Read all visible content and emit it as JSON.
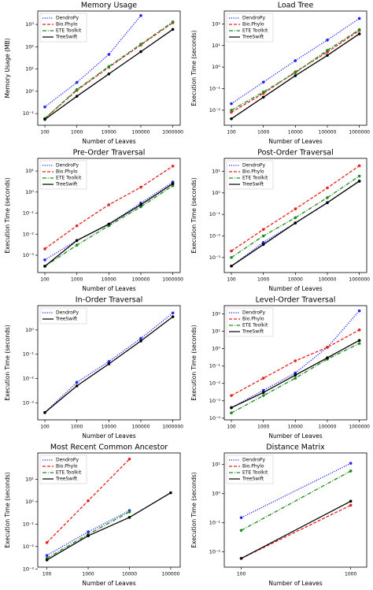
{
  "chart_data": [
    {
      "type": "line",
      "title": "Memory Usage",
      "xlabel": "Number of Leaves",
      "ylabel": "Memory Usage (MB)",
      "log_x": true,
      "log_y": true,
      "legend": "upper left",
      "x": [
        100,
        1000,
        10000,
        100000,
        1000000
      ],
      "xlim": [
        60,
        1700000
      ],
      "xticks": [
        100,
        1000,
        10000,
        100000,
        1000000
      ],
      "ylim": [
        0.03,
        4000
      ],
      "yticks": [
        {
          "value": 0.1,
          "label": "10⁻¹"
        },
        {
          "value": 1,
          "label": "10⁰"
        },
        {
          "value": 10,
          "label": "10¹"
        },
        {
          "value": 100,
          "label": "10²"
        },
        {
          "value": 1000,
          "label": "10³"
        }
      ],
      "series": [
        {
          "name": "DendroPy",
          "color": "#1f1fff",
          "linestyle": "dotted",
          "values": [
            0.2,
            2.5,
            45,
            2500,
            null
          ]
        },
        {
          "name": "Bio.Phylo",
          "color": "#e8231f",
          "linestyle": "dashed",
          "values": [
            0.06,
            1.1,
            12,
            120,
            1200
          ]
        },
        {
          "name": "ETE Toolkit",
          "color": "#1c8a1c",
          "linestyle": "dashdot",
          "values": [
            0.06,
            1.2,
            13,
            130,
            1300
          ]
        },
        {
          "name": "TreeSwift",
          "color": "#000000",
          "linestyle": "solid",
          "values": [
            0.055,
            0.6,
            6,
            60,
            600
          ]
        }
      ]
    },
    {
      "type": "line",
      "title": "Load Tree",
      "xlabel": "Number of Leaves",
      "ylabel": "Execution Time (seconds)",
      "log_x": true,
      "log_y": true,
      "legend": "upper left",
      "x": [
        100,
        1000,
        10000,
        100000,
        1000000
      ],
      "xlim": [
        60,
        1700000
      ],
      "xticks": [
        100,
        1000,
        10000,
        100000,
        1000000
      ],
      "ylim": [
        0.002,
        400
      ],
      "yticks": [
        {
          "value": 0.01,
          "label": "10⁻²"
        },
        {
          "value": 0.1,
          "label": "10⁻¹"
        },
        {
          "value": 1,
          "label": "10⁰"
        },
        {
          "value": 10,
          "label": "10¹"
        },
        {
          "value": 100,
          "label": "10²"
        }
      ],
      "series": [
        {
          "name": "DendroPy",
          "color": "#1f1fff",
          "linestyle": "dotted",
          "values": [
            0.02,
            0.2,
            2,
            18,
            180
          ]
        },
        {
          "name": "Bio.Phylo",
          "color": "#e8231f",
          "linestyle": "dashed",
          "values": [
            0.008,
            0.06,
            0.6,
            5,
            50
          ]
        },
        {
          "name": "ETE Toolkit",
          "color": "#1c8a1c",
          "linestyle": "dashdot",
          "values": [
            0.01,
            0.07,
            0.55,
            6,
            55
          ]
        },
        {
          "name": "TreeSwift",
          "color": "#000000",
          "linestyle": "solid",
          "values": [
            0.004,
            0.04,
            0.4,
            3.5,
            35
          ]
        }
      ]
    },
    {
      "type": "line",
      "title": "Pre-Order Traversal",
      "xlabel": "Number of Leaves",
      "ylabel": "Execution Time (seconds)",
      "log_x": true,
      "log_y": true,
      "legend": "upper left",
      "x": [
        100,
        1000,
        10000,
        100000,
        1000000
      ],
      "xlim": [
        60,
        1700000
      ],
      "xticks": [
        100,
        1000,
        10000,
        100000,
        1000000
      ],
      "ylim": [
        0.00015,
        40
      ],
      "yticks": [
        {
          "value": 0.001,
          "label": "10⁻³"
        },
        {
          "value": 0.01,
          "label": "10⁻²"
        },
        {
          "value": 0.1,
          "label": "10⁻¹"
        },
        {
          "value": 1,
          "label": "10⁰"
        },
        {
          "value": 10,
          "label": "10¹"
        }
      ],
      "series": [
        {
          "name": "DendroPy",
          "color": "#1f1fff",
          "linestyle": "dotted",
          "values": [
            0.0006,
            0.005,
            0.03,
            0.3,
            3
          ]
        },
        {
          "name": "Bio.Phylo",
          "color": "#e8231f",
          "linestyle": "dashed",
          "values": [
            0.002,
            0.025,
            0.25,
            1.7,
            17
          ]
        },
        {
          "name": "ETE Toolkit",
          "color": "#1c8a1c",
          "linestyle": "dashdot",
          "values": [
            0.0003,
            0.003,
            0.025,
            0.2,
            2
          ]
        },
        {
          "name": "TreeSwift",
          "color": "#000000",
          "linestyle": "solid",
          "values": [
            0.0003,
            0.005,
            0.03,
            0.25,
            2.5
          ]
        }
      ]
    },
    {
      "type": "line",
      "title": "Post-Order Traversal",
      "xlabel": "Number of Leaves",
      "ylabel": "Execution Time (seconds)",
      "log_x": true,
      "log_y": true,
      "legend": "upper left",
      "x": [
        100,
        1000,
        10000,
        100000,
        1000000
      ],
      "xlim": [
        60,
        1700000
      ],
      "xticks": [
        100,
        1000,
        10000,
        100000,
        1000000
      ],
      "ylim": [
        0.0002,
        40
      ],
      "yticks": [
        {
          "value": 0.001,
          "label": "10⁻³"
        },
        {
          "value": 0.01,
          "label": "10⁻²"
        },
        {
          "value": 0.1,
          "label": "10⁻¹"
        },
        {
          "value": 1,
          "label": "10⁰"
        },
        {
          "value": 10,
          "label": "10¹"
        }
      ],
      "series": [
        {
          "name": "DendroPy",
          "color": "#1f1fff",
          "linestyle": "dotted",
          "values": [
            0.0004,
            0.005,
            0.04,
            0.35,
            3.5
          ]
        },
        {
          "name": "Bio.Phylo",
          "color": "#e8231f",
          "linestyle": "dashed",
          "values": [
            0.002,
            0.02,
            0.18,
            1.7,
            18
          ]
        },
        {
          "name": "ETE Toolkit",
          "color": "#1c8a1c",
          "linestyle": "dashdot",
          "values": [
            0.001,
            0.01,
            0.07,
            0.6,
            6
          ]
        },
        {
          "name": "TreeSwift",
          "color": "#000000",
          "linestyle": "solid",
          "values": [
            0.0004,
            0.004,
            0.04,
            0.35,
            3.5
          ]
        }
      ]
    },
    {
      "type": "line",
      "title": "In-Order Traversal",
      "xlabel": "Number of Leaves",
      "ylabel": "Execution Time (seconds)",
      "log_x": true,
      "log_y": true,
      "legend": "upper left",
      "x": [
        100,
        1000,
        10000,
        100000,
        1000000
      ],
      "xlim": [
        60,
        1700000
      ],
      "xticks": [
        100,
        1000,
        10000,
        100000,
        1000000
      ],
      "ylim": [
        0.0002,
        10
      ],
      "yticks": [
        {
          "value": 0.001,
          "label": "10⁻³"
        },
        {
          "value": 0.01,
          "label": "10⁻²"
        },
        {
          "value": 0.1,
          "label": "10⁻¹"
        },
        {
          "value": 1,
          "label": "10⁰"
        }
      ],
      "series": [
        {
          "name": "DendroPy",
          "color": "#1f1fff",
          "linestyle": "dotted",
          "values": [
            0.0004,
            0.007,
            0.05,
            0.45,
            5
          ]
        },
        {
          "name": "TreeSwift",
          "color": "#000000",
          "linestyle": "solid",
          "values": [
            0.0004,
            0.005,
            0.04,
            0.35,
            3.5
          ]
        }
      ]
    },
    {
      "type": "line",
      "title": "Level-Order Traversal",
      "xlabel": "Number of Leaves",
      "ylabel": "Execution Time (seconds)",
      "log_x": true,
      "log_y": true,
      "legend": "upper left",
      "x": [
        100,
        1000,
        10000,
        100000,
        1000000
      ],
      "xlim": [
        60,
        1700000
      ],
      "xticks": [
        100,
        1000,
        10000,
        100000,
        1000000
      ],
      "ylim": [
        8e-05,
        300
      ],
      "yticks": [
        {
          "value": 0.0001,
          "label": "10⁻⁴"
        },
        {
          "value": 0.001,
          "label": "10⁻³"
        },
        {
          "value": 0.01,
          "label": "10⁻²"
        },
        {
          "value": 0.1,
          "label": "10⁻¹"
        },
        {
          "value": 1,
          "label": "10⁰"
        },
        {
          "value": 10,
          "label": "10¹"
        },
        {
          "value": 100,
          "label": "10²"
        }
      ],
      "series": [
        {
          "name": "DendroPy",
          "color": "#1f1fff",
          "linestyle": "dotted",
          "values": [
            0.0004,
            0.004,
            0.04,
            1.2,
            150
          ]
        },
        {
          "name": "Bio.Phylo",
          "color": "#e8231f",
          "linestyle": "dashed",
          "values": [
            0.002,
            0.02,
            0.2,
            1.2,
            12
          ]
        },
        {
          "name": "ETE Toolkit",
          "color": "#1c8a1c",
          "linestyle": "dashdot",
          "values": [
            0.0002,
            0.002,
            0.02,
            0.25,
            2
          ]
        },
        {
          "name": "TreeSwift",
          "color": "#000000",
          "linestyle": "solid",
          "values": [
            0.0004,
            0.003,
            0.03,
            0.3,
            3
          ]
        }
      ]
    },
    {
      "type": "line",
      "title": "Most Recent Common Ancestor",
      "xlabel": "Number of Leaves",
      "ylabel": "Execution Time (seconds)",
      "log_x": true,
      "log_y": true,
      "legend": "upper left",
      "x": [
        100,
        1000,
        10000,
        100000
      ],
      "xlim": [
        60,
        170000
      ],
      "xticks": [
        100,
        1000,
        10000,
        100000
      ],
      "ylim": [
        0.0012,
        150
      ],
      "yticks": [
        {
          "value": 0.001,
          "label": "10⁻³"
        },
        {
          "value": 0.01,
          "label": "10⁻²"
        },
        {
          "value": 0.1,
          "label": "10⁻¹"
        },
        {
          "value": 1,
          "label": "10⁰"
        },
        {
          "value": 10,
          "label": "10¹"
        }
      ],
      "series": [
        {
          "name": "DendroPy",
          "color": "#1f1fff",
          "linestyle": "dotted",
          "values": [
            0.004,
            0.045,
            0.4,
            null
          ]
        },
        {
          "name": "Bio.Phylo",
          "color": "#e8231f",
          "linestyle": "dashed",
          "values": [
            0.015,
            1.1,
            80,
            null
          ]
        },
        {
          "name": "ETE Toolkit",
          "color": "#1c8a1c",
          "linestyle": "dashdot",
          "values": [
            0.003,
            0.035,
            0.35,
            null
          ]
        },
        {
          "name": "TreeSwift",
          "color": "#000000",
          "linestyle": "solid",
          "values": [
            0.0025,
            0.03,
            0.2,
            2.5
          ]
        }
      ]
    },
    {
      "type": "line",
      "title": "Distance Matrix",
      "xlabel": "Number of Leaves",
      "ylabel": "Execution Time (seconds)",
      "log_x": true,
      "log_y": true,
      "legend": "upper left",
      "x": [
        100,
        1000
      ],
      "xlim": [
        70,
        1400
      ],
      "xticks": [
        100,
        1000
      ],
      "ylim": [
        0.003,
        25
      ],
      "yticks": [
        {
          "value": 0.01,
          "label": "10⁻²"
        },
        {
          "value": 0.1,
          "label": "10⁻¹"
        },
        {
          "value": 1,
          "label": "10⁰"
        },
        {
          "value": 10,
          "label": "10¹"
        }
      ],
      "series": [
        {
          "name": "DendroPy",
          "color": "#1f1fff",
          "linestyle": "dotted",
          "values": [
            0.15,
            11
          ]
        },
        {
          "name": "Bio.Phylo",
          "color": "#e8231f",
          "linestyle": "dashed",
          "values": [
            0.006,
            0.4
          ]
        },
        {
          "name": "ETE Toolkit",
          "color": "#1c8a1c",
          "linestyle": "dashdot",
          "values": [
            0.055,
            6
          ]
        },
        {
          "name": "TreeSwift",
          "color": "#000000",
          "linestyle": "solid",
          "values": [
            0.006,
            0.55
          ]
        }
      ]
    }
  ]
}
